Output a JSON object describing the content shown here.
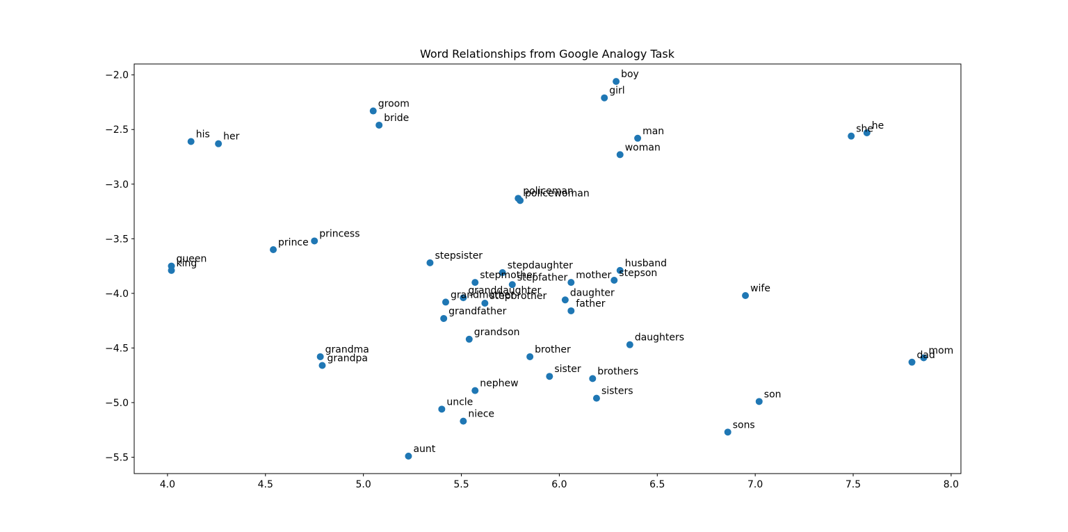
{
  "chart_data": {
    "type": "scatter",
    "title": "Word Relationships from Google Analogy Task",
    "xlabel": "",
    "ylabel": "",
    "xlim": [
      3.83,
      8.05
    ],
    "ylim": [
      -5.65,
      -1.9
    ],
    "xticks": [
      4.0,
      4.5,
      5.0,
      5.5,
      6.0,
      6.5,
      7.0,
      7.5,
      8.0
    ],
    "xtick_labels": [
      "4.0",
      "4.5",
      "5.0",
      "5.5",
      "6.0",
      "6.5",
      "7.0",
      "7.5",
      "8.0"
    ],
    "yticks": [
      -2.0,
      -2.5,
      -3.0,
      -3.5,
      -4.0,
      -4.5,
      -5.0,
      -5.5
    ],
    "ytick_labels": [
      "−2.0",
      "−2.5",
      "−3.0",
      "−3.5",
      "−4.0",
      "−4.5",
      "−5.0",
      "−5.5"
    ],
    "grid": false,
    "point_color": "#1f77b4",
    "points": [
      {
        "label": "boy",
        "x": 6.29,
        "y": -2.06
      },
      {
        "label": "girl",
        "x": 6.23,
        "y": -2.21
      },
      {
        "label": "groom",
        "x": 5.05,
        "y": -2.33
      },
      {
        "label": "bride",
        "x": 5.08,
        "y": -2.46
      },
      {
        "label": "man",
        "x": 6.4,
        "y": -2.58
      },
      {
        "label": "woman",
        "x": 6.31,
        "y": -2.73
      },
      {
        "label": "his",
        "x": 4.12,
        "y": -2.61
      },
      {
        "label": "her",
        "x": 4.26,
        "y": -2.63
      },
      {
        "label": "she",
        "x": 7.49,
        "y": -2.56
      },
      {
        "label": "he",
        "x": 7.57,
        "y": -2.53
      },
      {
        "label": "policeman",
        "x": 5.79,
        "y": -3.13
      },
      {
        "label": "policewoman",
        "x": 5.8,
        "y": -3.15
      },
      {
        "label": "prince",
        "x": 4.54,
        "y": -3.6
      },
      {
        "label": "princess",
        "x": 4.75,
        "y": -3.52
      },
      {
        "label": "queen",
        "x": 4.02,
        "y": -3.75
      },
      {
        "label": "king",
        "x": 4.02,
        "y": -3.79
      },
      {
        "label": "stepsister",
        "x": 5.34,
        "y": -3.72
      },
      {
        "label": "stepdaughter",
        "x": 5.71,
        "y": -3.81
      },
      {
        "label": "stepmother",
        "x": 5.57,
        "y": -3.9
      },
      {
        "label": "stepfather",
        "x": 5.76,
        "y": -3.92
      },
      {
        "label": "mother",
        "x": 6.06,
        "y": -3.9
      },
      {
        "label": "husband",
        "x": 6.31,
        "y": -3.79
      },
      {
        "label": "stepson",
        "x": 6.28,
        "y": -3.88
      },
      {
        "label": "granddaughter",
        "x": 5.51,
        "y": -4.04
      },
      {
        "label": "grandmother",
        "x": 5.42,
        "y": -4.08
      },
      {
        "label": "stepbrother",
        "x": 5.62,
        "y": -4.09
      },
      {
        "label": "daughter",
        "x": 6.03,
        "y": -4.06
      },
      {
        "label": "father",
        "x": 6.06,
        "y": -4.16
      },
      {
        "label": "grandfather",
        "x": 5.41,
        "y": -4.23
      },
      {
        "label": "wife",
        "x": 6.95,
        "y": -4.02
      },
      {
        "label": "grandson",
        "x": 5.54,
        "y": -4.42
      },
      {
        "label": "daughters",
        "x": 6.36,
        "y": -4.47
      },
      {
        "label": "grandma",
        "x": 4.78,
        "y": -4.58
      },
      {
        "label": "grandpa",
        "x": 4.79,
        "y": -4.66
      },
      {
        "label": "brother",
        "x": 5.85,
        "y": -4.58
      },
      {
        "label": "sister",
        "x": 5.95,
        "y": -4.76
      },
      {
        "label": "brothers",
        "x": 6.17,
        "y": -4.78
      },
      {
        "label": "dad",
        "x": 7.8,
        "y": -4.63
      },
      {
        "label": "mom",
        "x": 7.86,
        "y": -4.59
      },
      {
        "label": "nephew",
        "x": 5.57,
        "y": -4.89
      },
      {
        "label": "sisters",
        "x": 6.19,
        "y": -4.96
      },
      {
        "label": "son",
        "x": 7.02,
        "y": -4.99
      },
      {
        "label": "uncle",
        "x": 5.4,
        "y": -5.06
      },
      {
        "label": "niece",
        "x": 5.51,
        "y": -5.17
      },
      {
        "label": "sons",
        "x": 6.86,
        "y": -5.27
      },
      {
        "label": "aunt",
        "x": 5.23,
        "y": -5.49
      }
    ]
  }
}
